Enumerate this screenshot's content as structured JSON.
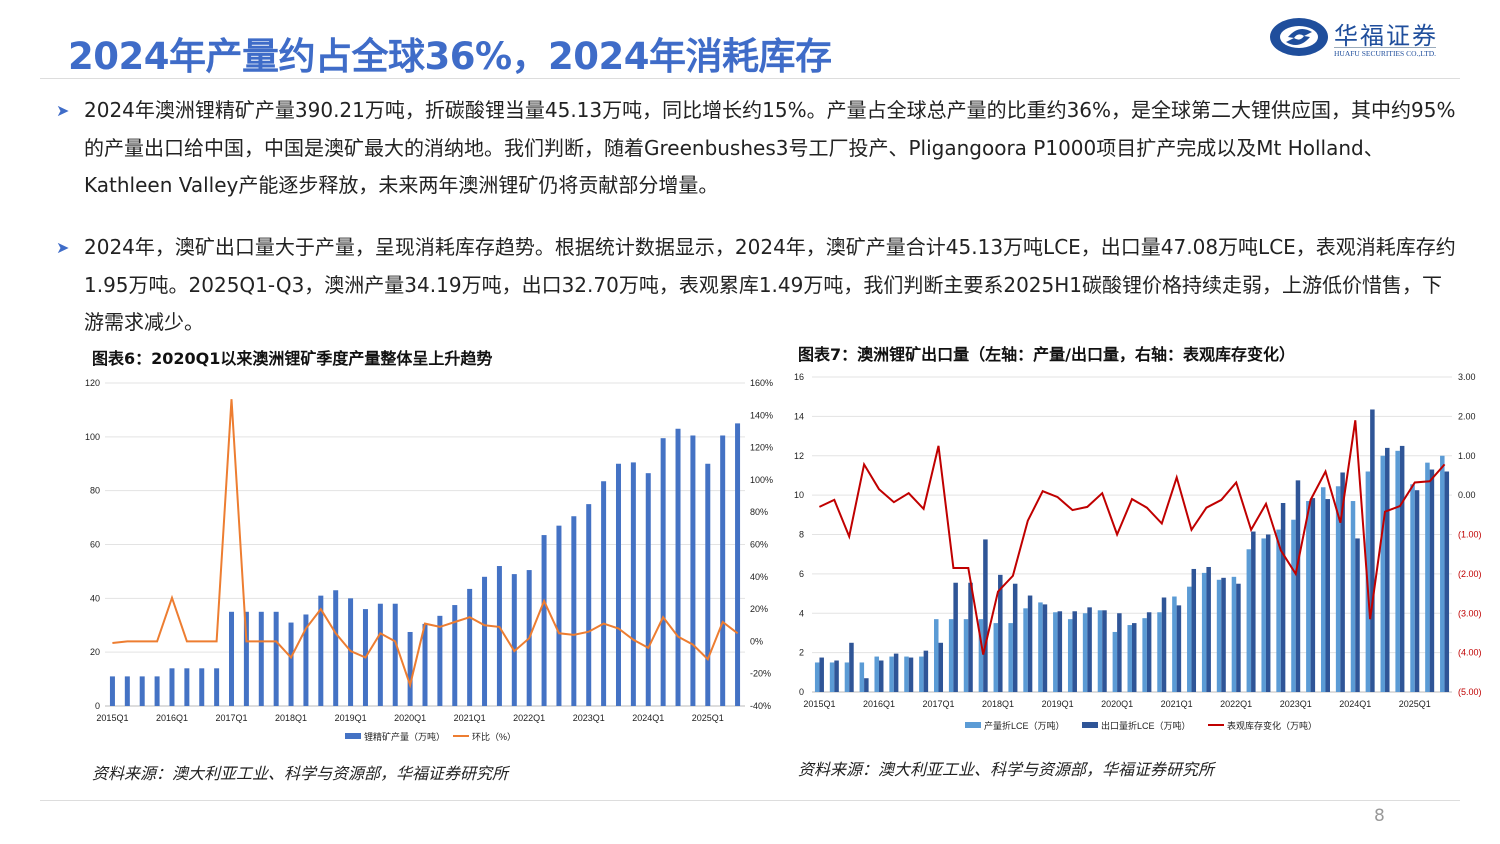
{
  "header": {
    "title": "2024年产量约占全球36%，2024年消耗库存",
    "logo_cn": "华福证券",
    "logo_en": "HUAFU SECURITIES CO.,LTD."
  },
  "bullets": [
    "2024年澳洲锂精矿产量390.21万吨，折碳酸锂当量45.13万吨，同比增长约15%。产量占全球总产量的比重约36%，是全球第二大锂供应国，其中约95%的产量出口给中国，中国是澳矿最大的消纳地。我们判断，随着Greenbushes3号工厂投产、Pligangoora P1000项目扩产完成以及Mt Holland、Kathleen Valley产能逐步释放，未来两年澳洲锂矿仍将贡献部分增量。",
    "2024年，澳矿出口量大于产量，呈现消耗库存趋势。根据统计数据显示，2024年，澳矿产量合计45.13万吨LCE，出口量47.08万吨LCE，表观消耗库存约1.95万吨。2025Q1-Q3，澳洲产量34.19万吨，出口32.70万吨，表观累库1.49万吨，我们判断主要系2025H1碳酸锂价格持续走弱，上游低价惜售，下游需求减少。"
  ],
  "footer": {
    "page_number": "8"
  },
  "colors": {
    "accent": "#3f6cc8",
    "bar_primary": "#4472c4",
    "bar_light": "#5b9bd5",
    "bar_dark": "#2f5597",
    "line_orange": "#ed7d31",
    "line_red": "#c00000"
  },
  "chart_data": [
    {
      "type": "bar",
      "title": "图表6：2020Q1以来澳洲锂矿季度产量整体呈上升趋势",
      "source": "资料来源：澳大利亚工业、科学与资源部，华福证券研究所",
      "x_tick_labels": [
        "2015Q1",
        "2016Q1",
        "2017Q1",
        "2018Q1",
        "2019Q1",
        "2020Q1",
        "2021Q1",
        "2022Q1",
        "2023Q1",
        "2024Q1",
        "2025Q1"
      ],
      "categories": [
        "2015Q1",
        "2015Q2",
        "2015Q3",
        "2015Q4",
        "2016Q1",
        "2016Q2",
        "2016Q3",
        "2016Q4",
        "2017Q1",
        "2017Q2",
        "2017Q3",
        "2017Q4",
        "2018Q1",
        "2018Q2",
        "2018Q3",
        "2018Q4",
        "2019Q1",
        "2019Q2",
        "2019Q3",
        "2019Q4",
        "2020Q1",
        "2020Q2",
        "2020Q3",
        "2020Q4",
        "2021Q1",
        "2021Q2",
        "2021Q3",
        "2021Q4",
        "2022Q1",
        "2022Q2",
        "2022Q3",
        "2022Q4",
        "2023Q1",
        "2023Q2",
        "2023Q3",
        "2023Q4",
        "2024Q1",
        "2024Q2",
        "2024Q3",
        "2024Q4",
        "2025Q1",
        "2025Q2",
        "2025Q3"
      ],
      "y_left": {
        "range": [
          0,
          120
        ],
        "ticks": [
          "0",
          "20",
          "40",
          "60",
          "80",
          "100",
          "120"
        ]
      },
      "y_right": {
        "range": [
          -40,
          160
        ],
        "ticks": [
          "-40%",
          "-20%",
          "0%",
          "20%",
          "40%",
          "60%",
          "80%",
          "100%",
          "120%",
          "140%",
          "160%"
        ]
      },
      "grid": true,
      "legend_position": "bottom",
      "series": [
        {
          "name": "锂精矿产量（万吨）",
          "type": "bar",
          "axis": "left",
          "color": "#4472c4",
          "values": [
            11,
            11,
            11,
            11,
            14,
            14,
            14,
            14,
            35,
            35,
            35,
            35,
            31,
            34,
            41,
            43,
            40,
            36,
            38,
            38,
            27.5,
            30.5,
            33.5,
            37.5,
            43.5,
            48,
            52,
            49,
            50.5,
            63.5,
            67,
            70.5,
            75,
            83.5,
            90,
            90.5,
            86.5,
            99.5,
            103,
            100.5,
            90,
            100.5,
            105
          ]
        },
        {
          "name": "环比（%）",
          "type": "line",
          "axis": "right",
          "color": "#ed7d31",
          "values": [
            -1,
            0,
            0,
            0,
            27,
            0,
            0,
            0,
            150,
            0,
            0,
            0,
            -10,
            8,
            20,
            5,
            -6,
            -10,
            5,
            0,
            -27,
            11,
            9,
            12,
            15,
            10,
            9,
            -6,
            2,
            25,
            5,
            4,
            6,
            11,
            8,
            1,
            -4,
            15,
            3,
            -2,
            -11,
            12,
            5
          ]
        }
      ]
    },
    {
      "type": "bar",
      "title": "图表7：澳洲锂矿出口量（左轴：产量/出口量，右轴：表观库存变化）",
      "source": "资料来源：澳大利亚工业、科学与资源部，华福证券研究所",
      "x_tick_labels": [
        "2015Q1",
        "2016Q1",
        "2017Q1",
        "2018Q1",
        "2019Q1",
        "2020Q1",
        "2021Q1",
        "2022Q1",
        "2023Q1",
        "2024Q1",
        "2025Q1"
      ],
      "categories": [
        "2015Q1",
        "2015Q2",
        "2015Q3",
        "2015Q4",
        "2016Q1",
        "2016Q2",
        "2016Q3",
        "2016Q4",
        "2017Q1",
        "2017Q2",
        "2017Q3",
        "2017Q4",
        "2018Q1",
        "2018Q2",
        "2018Q3",
        "2018Q4",
        "2019Q1",
        "2019Q2",
        "2019Q3",
        "2019Q4",
        "2020Q1",
        "2020Q2",
        "2020Q3",
        "2020Q4",
        "2021Q1",
        "2021Q2",
        "2021Q3",
        "2021Q4",
        "2022Q1",
        "2022Q2",
        "2022Q3",
        "2022Q4",
        "2023Q1",
        "2023Q2",
        "2023Q3",
        "2023Q4",
        "2024Q1",
        "2024Q2",
        "2024Q3",
        "2024Q4",
        "2025Q1",
        "2025Q2",
        "2025Q3"
      ],
      "y_left": {
        "range": [
          0,
          16
        ],
        "ticks": [
          "0",
          "2",
          "4",
          "6",
          "8",
          "10",
          "12",
          "14",
          "16"
        ]
      },
      "y_right": {
        "range": [
          -5,
          3
        ],
        "ticks": [
          "(5.00)",
          "(4.00)",
          "(3.00)",
          "(2.00)",
          "(1.00)",
          "0.00",
          "1.00",
          "2.00",
          "3.00"
        ]
      },
      "grid": true,
      "legend_position": "bottom",
      "series": [
        {
          "name": "产量折LCE（万吨）",
          "type": "bar",
          "axis": "left",
          "color": "#5b9bd5",
          "values": [
            1.5,
            1.5,
            1.5,
            1.5,
            1.8,
            1.8,
            1.8,
            1.8,
            3.7,
            3.7,
            3.7,
            3.7,
            3.5,
            3.5,
            4.25,
            4.55,
            4.05,
            3.7,
            4.0,
            4.15,
            3.05,
            3.4,
            3.75,
            4.05,
            4.85,
            5.35,
            6.05,
            5.7,
            5.85,
            7.25,
            7.8,
            8.25,
            8.75,
            9.7,
            10.4,
            10.45,
            9.7,
            11.2,
            12.0,
            12.25,
            10.55,
            11.65,
            12.0
          ]
        },
        {
          "name": "出口量折LCE（万吨）",
          "type": "bar",
          "axis": "left",
          "color": "#2f5597",
          "values": [
            1.75,
            1.6,
            2.5,
            0.7,
            1.6,
            1.95,
            1.75,
            2.1,
            2.5,
            5.55,
            5.55,
            7.75,
            5.95,
            5.5,
            4.9,
            4.45,
            4.1,
            4.1,
            4.3,
            4.15,
            4.0,
            3.5,
            4.05,
            4.8,
            4.4,
            6.25,
            6.35,
            5.8,
            5.5,
            8.15,
            8.0,
            9.6,
            10.75,
            9.85,
            9.8,
            11.15,
            7.8,
            14.35,
            12.4,
            12.5,
            10.25,
            11.3,
            11.2
          ]
        },
        {
          "name": "表观库存变化（万吨）",
          "type": "line",
          "axis": "right",
          "color": "#c00000",
          "values": [
            -0.3,
            -0.12,
            -1.05,
            0.78,
            0.15,
            -0.18,
            0.05,
            -0.35,
            1.25,
            -1.85,
            -1.85,
            -4.05,
            -2.45,
            -2.05,
            -0.65,
            0.1,
            -0.05,
            -0.38,
            -0.3,
            0.05,
            -1.0,
            -0.1,
            -0.32,
            -0.72,
            0.45,
            -0.88,
            -0.32,
            -0.12,
            0.32,
            -0.88,
            -0.22,
            -1.4,
            -2.0,
            -0.12,
            0.6,
            -0.7,
            1.9,
            -3.15,
            -0.42,
            -0.28,
            0.32,
            0.35,
            0.78
          ]
        }
      ]
    }
  ]
}
